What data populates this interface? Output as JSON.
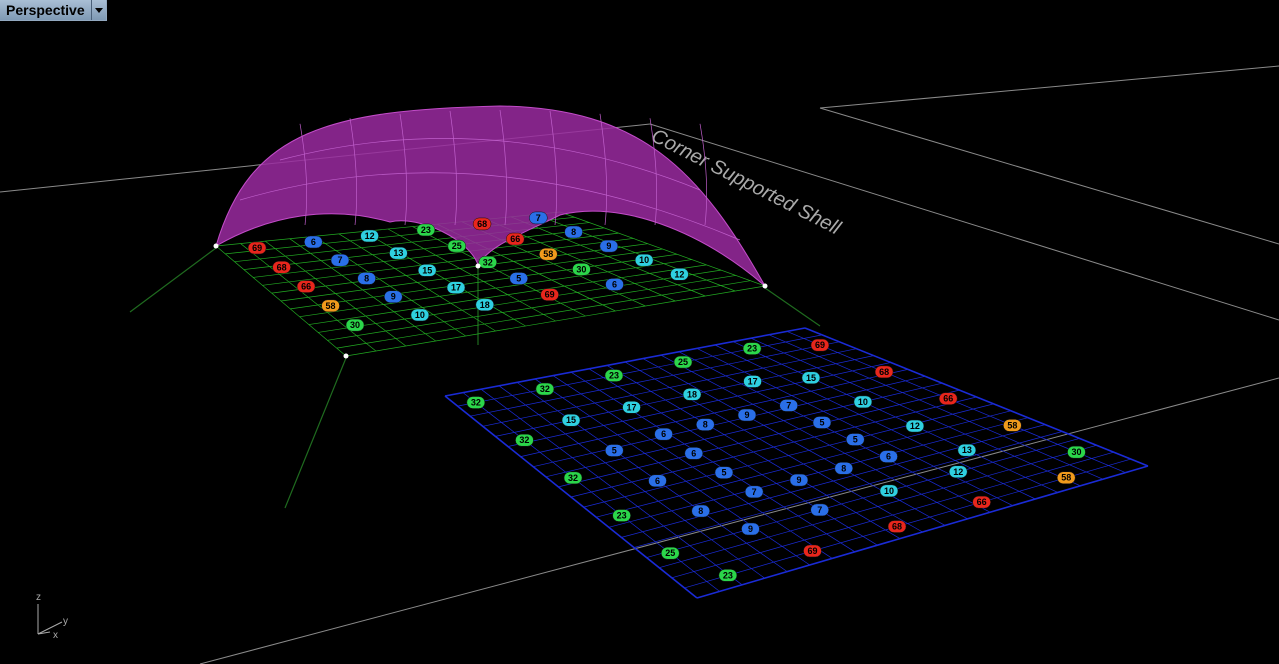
{
  "viewport": {
    "title": "Perspective",
    "menu_icon": "chevron-down-icon"
  },
  "scene": {
    "annotation_text": "Corner Supported Shell",
    "axes": {
      "z": "z",
      "y": "y",
      "x": "x"
    },
    "colors": {
      "shell": "#9a2aa0",
      "grid_plan": "#1a2bd6",
      "grid_surface": "#2bd62b",
      "label_red": "#e8261c",
      "label_orange": "#f09a1c",
      "label_green": "#2bd64a",
      "label_cyan": "#2fd0e0",
      "label_blue": "#2a6fe8"
    },
    "plan_rings": {
      "outer": [
        "32",
        "32",
        "23",
        "25",
        "23",
        "69",
        "68",
        "66",
        "58",
        "30",
        "58",
        "66",
        "68",
        "69",
        "23",
        "25",
        "23",
        "32",
        "32"
      ],
      "ring2": [
        "15",
        "17",
        "18",
        "17",
        "15",
        "10",
        "12",
        "13",
        "12",
        "10",
        "7",
        "9",
        "8",
        "6",
        "5"
      ],
      "ring3": [
        "6",
        "8",
        "9",
        "7",
        "5",
        "5",
        "6",
        "8",
        "9",
        "7",
        "5",
        "6"
      ]
    },
    "shell_labels": [
      "69",
      "68",
      "66",
      "58",
      "30",
      "6",
      "7",
      "8",
      "9",
      "10",
      "12",
      "13",
      "15",
      "17",
      "18",
      "23",
      "25",
      "32",
      "5"
    ]
  }
}
